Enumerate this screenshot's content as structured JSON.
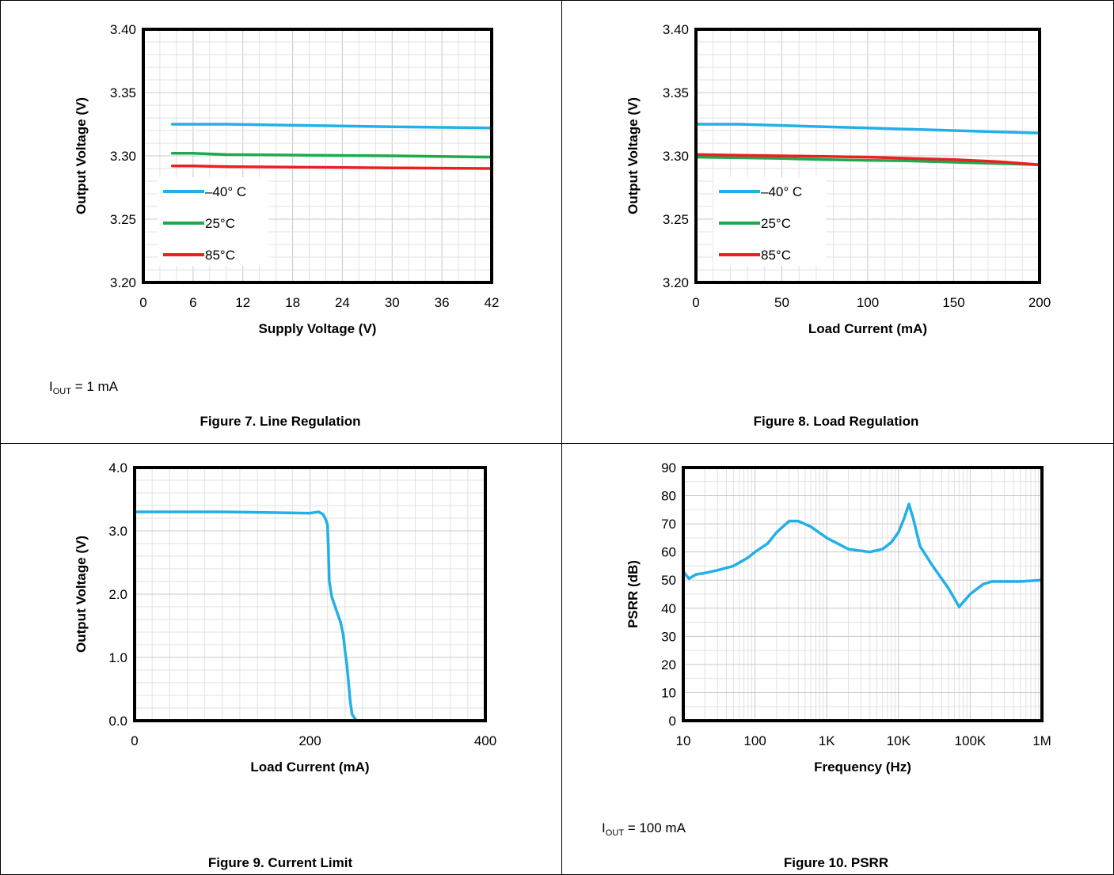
{
  "chart_data": [
    {
      "type": "line",
      "ylabel": "Output Voltage (V)",
      "xlabel": "Supply Voltage (V)",
      "xlim": [
        0,
        42
      ],
      "ylim": [
        3.2,
        3.4
      ],
      "x_ticks": [
        "0",
        "6",
        "12",
        "18",
        "24",
        "30",
        "36",
        "42"
      ],
      "y_ticks": [
        "3.20",
        "3.25",
        "3.30",
        "3.35",
        "3.40"
      ],
      "grid": true,
      "legend_position": "lower-left",
      "note": {
        "prefix": "I",
        "sub": "OUT",
        "suffix": " = 1 mA"
      },
      "caption": "Figure 7. Line Regulation",
      "series": [
        {
          "name": "–40° C",
          "color": "#22b0e6",
          "x": [
            3.5,
            6,
            10,
            20,
            30,
            42
          ],
          "y": [
            3.325,
            3.325,
            3.325,
            3.324,
            3.323,
            3.322
          ]
        },
        {
          "name": "25°C",
          "color": "#1fa84e",
          "x": [
            3.5,
            6,
            10,
            20,
            30,
            42
          ],
          "y": [
            3.302,
            3.302,
            3.301,
            3.3005,
            3.3,
            3.299
          ]
        },
        {
          "name": "85°C",
          "color": "#ec2020",
          "x": [
            3.5,
            6,
            10,
            20,
            30,
            42
          ],
          "y": [
            3.292,
            3.292,
            3.2915,
            3.291,
            3.2905,
            3.29
          ]
        }
      ]
    },
    {
      "type": "line",
      "ylabel": "Output Voltage (V)",
      "xlabel": "Load Current (mA)",
      "xlim": [
        0,
        200
      ],
      "ylim": [
        3.2,
        3.4
      ],
      "x_ticks": [
        "0",
        "50",
        "100",
        "150",
        "200"
      ],
      "y_ticks": [
        "3.20",
        "3.25",
        "3.30",
        "3.35",
        "3.40"
      ],
      "grid": true,
      "legend_position": "lower-left",
      "caption": "Figure 8. Load Regulation",
      "series": [
        {
          "name": "–40° C",
          "color": "#22b0e6",
          "x": [
            0,
            25,
            50,
            75,
            100,
            125,
            150,
            175,
            200
          ],
          "y": [
            3.325,
            3.325,
            3.324,
            3.323,
            3.322,
            3.321,
            3.32,
            3.319,
            3.318
          ]
        },
        {
          "name": "25°C",
          "color": "#1fa84e",
          "x": [
            0,
            25,
            50,
            75,
            100,
            125,
            150,
            175,
            200
          ],
          "y": [
            3.299,
            3.2985,
            3.298,
            3.297,
            3.2965,
            3.296,
            3.295,
            3.294,
            3.293
          ]
        },
        {
          "name": "85°C",
          "color": "#ec2020",
          "x": [
            0,
            25,
            50,
            75,
            100,
            125,
            150,
            175,
            200
          ],
          "y": [
            3.301,
            3.3005,
            3.3,
            3.2995,
            3.299,
            3.298,
            3.297,
            3.2955,
            3.293
          ]
        }
      ]
    },
    {
      "type": "line",
      "ylabel": "Output Voltage (V)",
      "xlabel": "Load Current (mA)",
      "xlim": [
        0,
        400
      ],
      "ylim": [
        0,
        4
      ],
      "x_ticks": [
        "0",
        "200",
        "400"
      ],
      "y_ticks": [
        "0.0",
        "1.0",
        "2.0",
        "3.0",
        "4.0"
      ],
      "grid": true,
      "caption": "Figure 9. Current Limit",
      "series": [
        {
          "color": "#22b0e6",
          "x": [
            0,
            50,
            100,
            150,
            200,
            205,
            210,
            215,
            218,
            220,
            221,
            222,
            225,
            230,
            235,
            238,
            240,
            242,
            244,
            246,
            248,
            252
          ],
          "y": [
            3.3,
            3.3,
            3.3,
            3.29,
            3.28,
            3.29,
            3.3,
            3.26,
            3.18,
            3.1,
            2.7,
            2.2,
            1.95,
            1.75,
            1.55,
            1.35,
            1.1,
            0.9,
            0.6,
            0.3,
            0.1,
            0.02
          ]
        }
      ]
    },
    {
      "type": "line",
      "ylabel": "PSRR (dB)",
      "xlabel": "Frequency (Hz)",
      "xlim": [
        10,
        1000000
      ],
      "x_scale": "log",
      "ylim": [
        0,
        90
      ],
      "x_ticks": [
        "10",
        "100",
        "1K",
        "10K",
        "100K",
        "1M"
      ],
      "y_ticks": [
        "0",
        "10",
        "20",
        "30",
        "40",
        "50",
        "60",
        "70",
        "80",
        "90"
      ],
      "grid": true,
      "note": {
        "prefix": "I",
        "sub": "OUT",
        "suffix": " = 100 mA"
      },
      "caption": "Figure 10. PSRR",
      "series": [
        {
          "color": "#22b0e6",
          "x": [
            10,
            12,
            15,
            20,
            30,
            50,
            80,
            100,
            150,
            200,
            300,
            400,
            600,
            1000,
            2000,
            4000,
            6000,
            8000,
            10000,
            12000,
            14000,
            16000,
            20000,
            30000,
            50000,
            70000,
            100000,
            150000,
            200000,
            500000,
            1000000
          ],
          "y": [
            53,
            50.5,
            52,
            52.5,
            53.5,
            55,
            58,
            60,
            63,
            67,
            71,
            71,
            69,
            65,
            61,
            60,
            61,
            63.5,
            67,
            72,
            77,
            72,
            62,
            55,
            47,
            40.5,
            45,
            48.5,
            49.5,
            49.5,
            50
          ]
        }
      ]
    }
  ]
}
